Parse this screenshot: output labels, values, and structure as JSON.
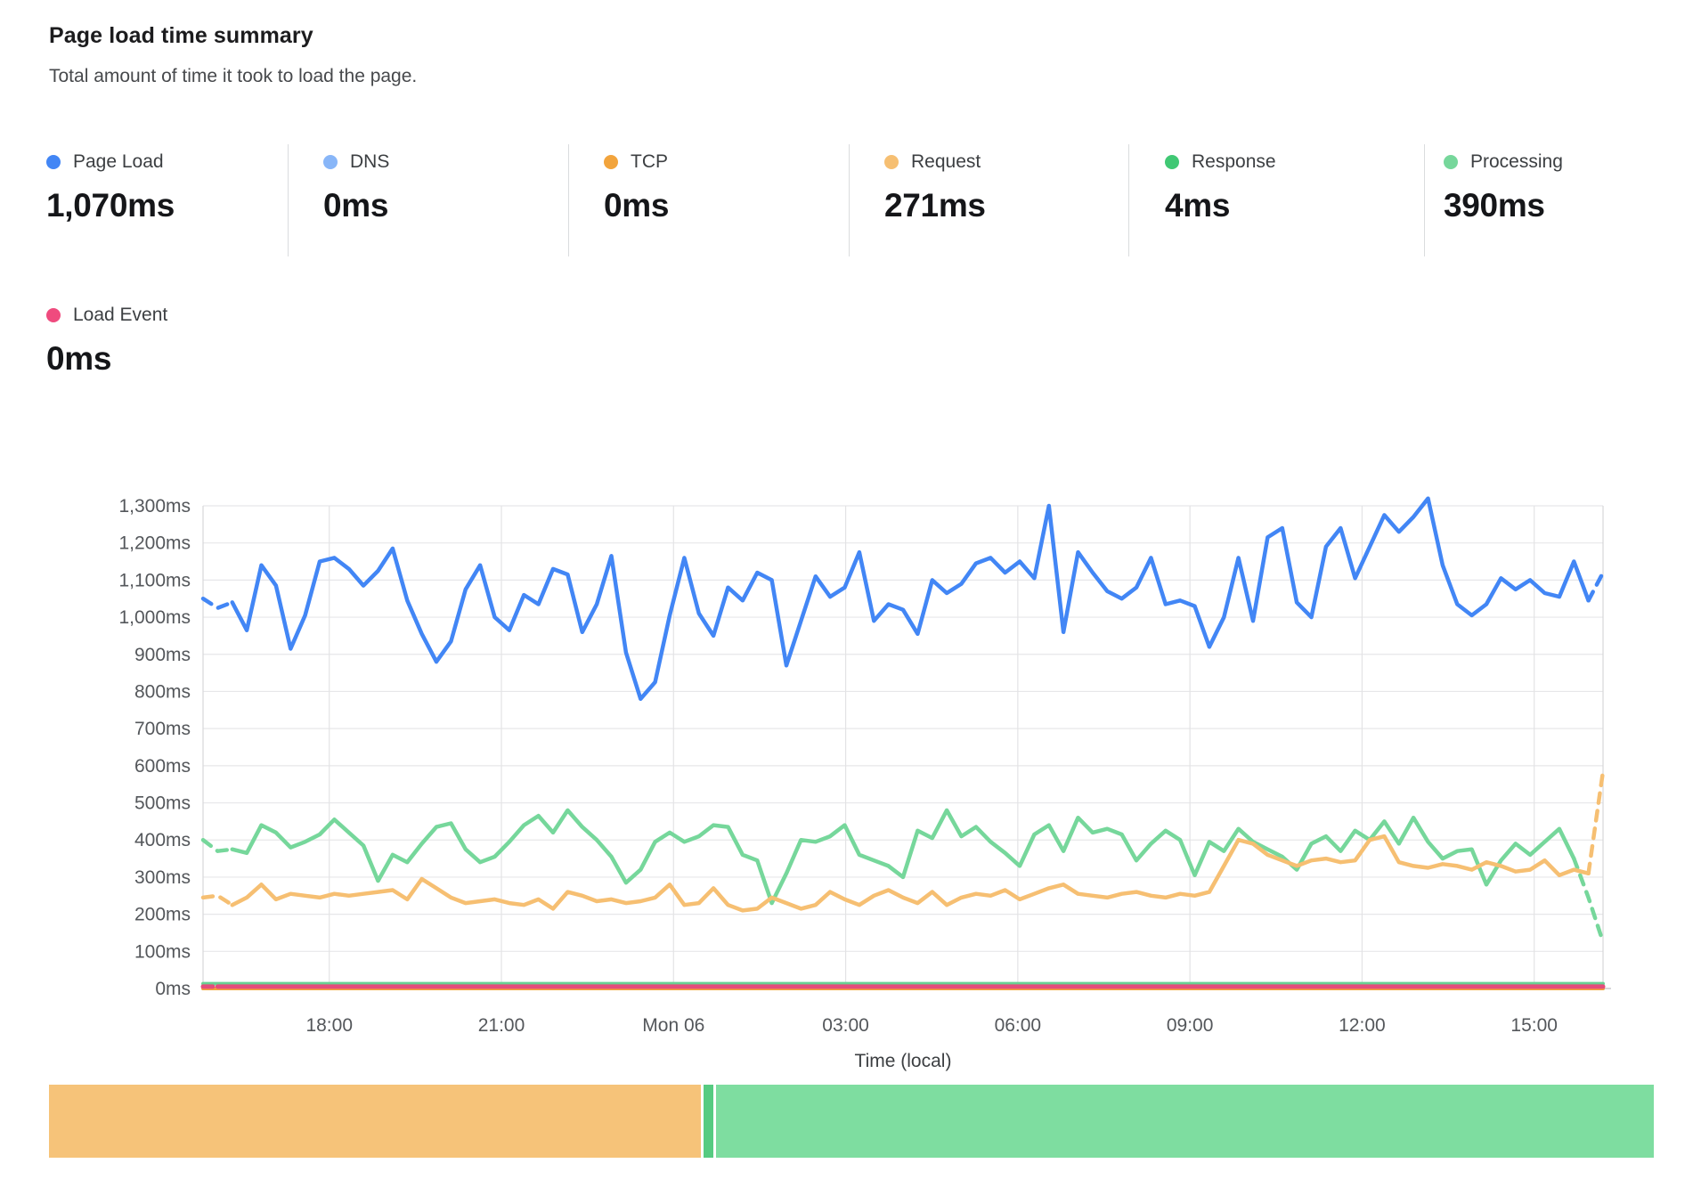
{
  "header": {
    "title": "Page load time summary",
    "subtitle": "Total amount of time it took to load the page."
  },
  "metrics": [
    {
      "id": "page-load",
      "label": "Page Load",
      "value": "1,070ms",
      "color": "#4286f5"
    },
    {
      "id": "dns",
      "label": "DNS",
      "value": "0ms",
      "color": "#88b6f8"
    },
    {
      "id": "tcp",
      "label": "TCP",
      "value": "0ms",
      "color": "#f2a43c"
    },
    {
      "id": "request",
      "label": "Request",
      "value": "271ms",
      "color": "#f6bf72"
    },
    {
      "id": "response",
      "label": "Response",
      "value": "4ms",
      "color": "#40c874"
    },
    {
      "id": "processing",
      "label": "Processing",
      "value": "390ms",
      "color": "#76d79b"
    },
    {
      "id": "load-event",
      "label": "Load Event",
      "value": "0ms",
      "color": "#ef4b7e"
    }
  ],
  "chart_data": {
    "type": "line",
    "title": "Page load time summary",
    "xlabel": "Time (local)",
    "ylabel": "",
    "ylim": [
      0,
      1300
    ],
    "y_tick_step": 100,
    "y_tick_suffix": "ms",
    "grid": true,
    "legend_position": "top",
    "x_domain_hours": [
      15.8,
      40.2
    ],
    "x_ticks": [
      {
        "hour": 18,
        "label": "18:00"
      },
      {
        "hour": 21,
        "label": "21:00"
      },
      {
        "hour": 24,
        "label": "Mon 06"
      },
      {
        "hour": 27,
        "label": "03:00"
      },
      {
        "hour": 30,
        "label": "06:00"
      },
      {
        "hour": 33,
        "label": "09:00"
      },
      {
        "hour": 36,
        "label": "12:00"
      },
      {
        "hour": 39,
        "label": "15:00"
      }
    ],
    "series": [
      {
        "name": "DNS",
        "color": "#88b6f8",
        "width": 4,
        "dash_head": 0,
        "dash_tail": 0,
        "flat_value": 0,
        "count": 97
      },
      {
        "name": "TCP",
        "color": "#f2a43c",
        "width": 4,
        "dash_head": 0,
        "dash_tail": 0,
        "flat_value": 0,
        "count": 97
      },
      {
        "name": "Processing",
        "color": "#76d79b",
        "width": 4.5,
        "dash_head": 2,
        "dash_tail": 2,
        "values": [
          400,
          370,
          375,
          365,
          440,
          420,
          380,
          395,
          415,
          455,
          420,
          385,
          290,
          360,
          340,
          390,
          435,
          445,
          375,
          340,
          355,
          395,
          440,
          465,
          420,
          480,
          435,
          400,
          355,
          285,
          320,
          395,
          420,
          395,
          410,
          440,
          435,
          360,
          345,
          230,
          310,
          400,
          395,
          410,
          440,
          360,
          345,
          330,
          300,
          425,
          405,
          480,
          410,
          435,
          395,
          365,
          330,
          415,
          440,
          370,
          460,
          420,
          430,
          415,
          345,
          390,
          425,
          400,
          305,
          395,
          370,
          430,
          395,
          375,
          355,
          320,
          390,
          410,
          370,
          425,
          400,
          450,
          390,
          460,
          395,
          350,
          370,
          375,
          280,
          345,
          390,
          360,
          395,
          430,
          350,
          245,
          125
        ]
      },
      {
        "name": "Request",
        "color": "#f6bf72",
        "width": 4.5,
        "dash_head": 2,
        "dash_tail": 1,
        "values": [
          245,
          250,
          225,
          245,
          280,
          240,
          255,
          250,
          245,
          255,
          250,
          255,
          260,
          265,
          240,
          295,
          270,
          245,
          230,
          235,
          240,
          230,
          225,
          240,
          215,
          260,
          250,
          235,
          240,
          230,
          235,
          245,
          280,
          225,
          230,
          270,
          225,
          210,
          215,
          245,
          230,
          215,
          225,
          260,
          240,
          225,
          250,
          265,
          245,
          230,
          260,
          225,
          245,
          255,
          250,
          265,
          240,
          255,
          270,
          280,
          255,
          250,
          245,
          255,
          260,
          250,
          245,
          255,
          250,
          260,
          330,
          400,
          390,
          360,
          345,
          330,
          345,
          350,
          340,
          345,
          400,
          410,
          340,
          330,
          325,
          335,
          330,
          320,
          340,
          330,
          315,
          320,
          345,
          305,
          320,
          310,
          585
        ]
      },
      {
        "name": "Response",
        "color": "#69d193",
        "width": 4,
        "dash_head": 0,
        "dash_tail": 0,
        "flat_value": 13,
        "count": 97
      },
      {
        "name": "Load Event",
        "color": "#e44d7b",
        "width": 5,
        "dash_head": 1,
        "dash_tail": 0,
        "flat_value": 5,
        "count": 97
      },
      {
        "name": "Page Load",
        "color": "#4286f5",
        "width": 4.5,
        "dash_head": 2,
        "dash_tail": 1,
        "values": [
          1050,
          1025,
          1040,
          965,
          1140,
          1085,
          915,
          1005,
          1150,
          1160,
          1130,
          1085,
          1125,
          1185,
          1045,
          955,
          880,
          935,
          1075,
          1140,
          1000,
          965,
          1060,
          1035,
          1130,
          1115,
          960,
          1035,
          1165,
          905,
          780,
          825,
          1005,
          1160,
          1010,
          950,
          1080,
          1045,
          1120,
          1100,
          870,
          990,
          1110,
          1055,
          1080,
          1175,
          990,
          1035,
          1020,
          955,
          1100,
          1065,
          1090,
          1145,
          1160,
          1120,
          1150,
          1105,
          1300,
          960,
          1175,
          1120,
          1070,
          1050,
          1080,
          1160,
          1035,
          1045,
          1030,
          920,
          1000,
          1160,
          990,
          1215,
          1240,
          1040,
          1000,
          1190,
          1240,
          1105,
          1190,
          1275,
          1230,
          1270,
          1320,
          1140,
          1035,
          1005,
          1035,
          1105,
          1075,
          1100,
          1065,
          1055,
          1150,
          1045,
          1120
        ]
      }
    ],
    "colors": {
      "grid": "#e7e7e9",
      "grid_vertical": "#e3e3e5",
      "plot_border": "#d7d7d9",
      "axis_text": "#54575b"
    }
  },
  "breakdown_bar": {
    "segments": [
      {
        "name": "Request",
        "value": 271,
        "color": "#f6c379"
      },
      {
        "name": "Response",
        "value": 4,
        "color": "#56cb81"
      },
      {
        "name": "Processing",
        "value": 390,
        "color": "#7edda0"
      }
    ]
  }
}
